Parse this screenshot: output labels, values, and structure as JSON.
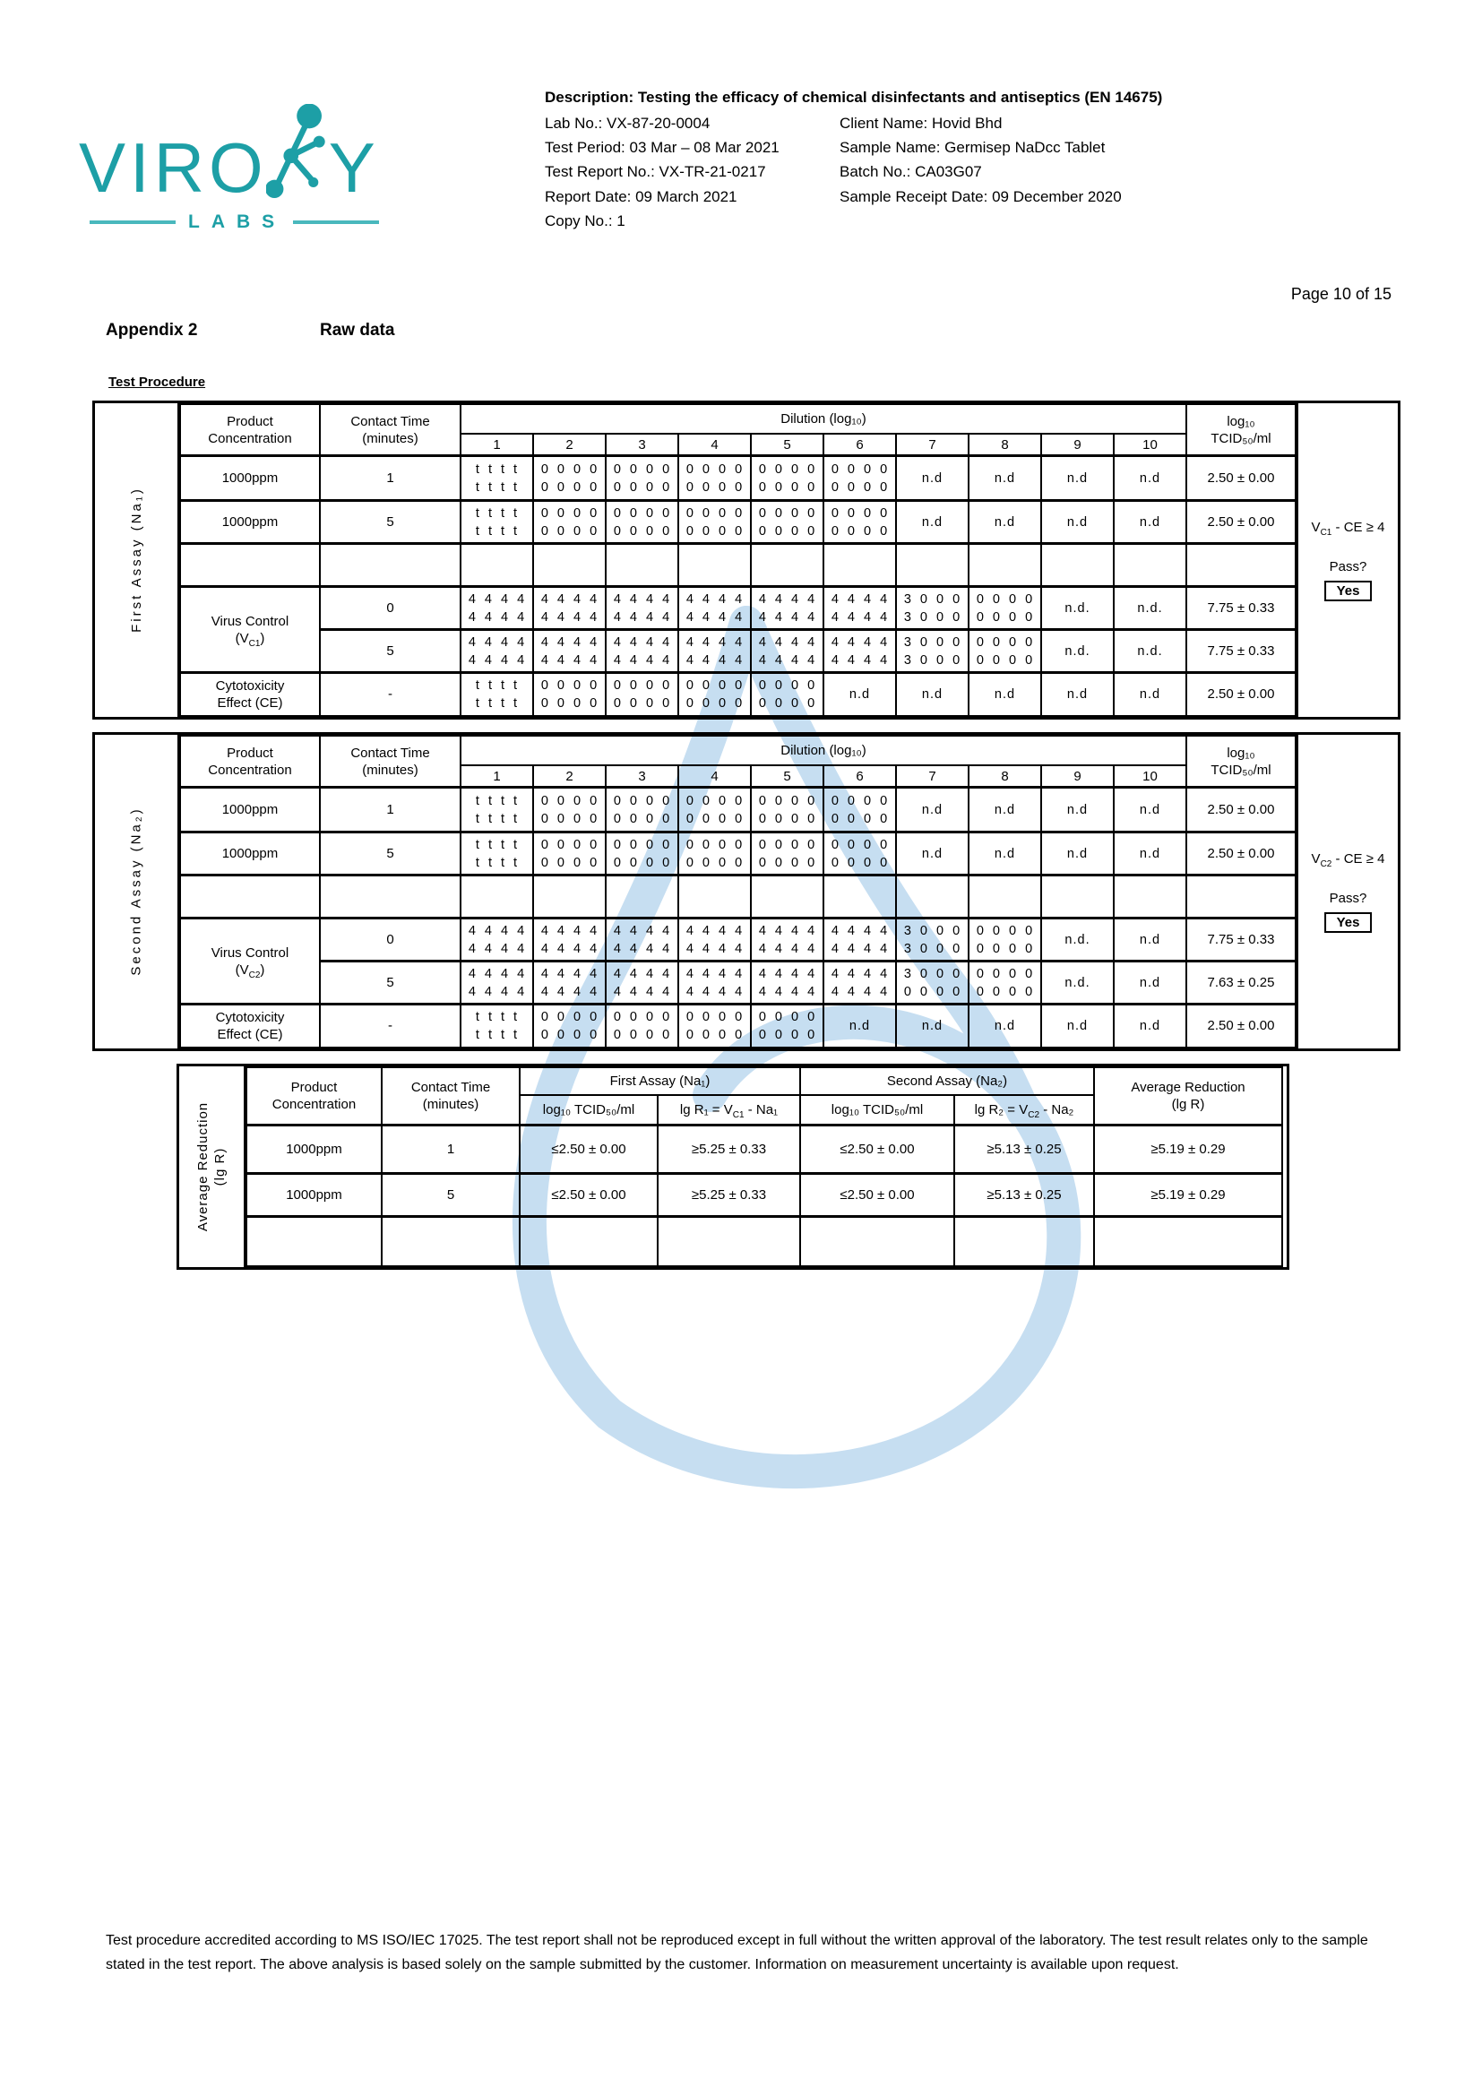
{
  "page": {
    "label": "Page 10 of 15"
  },
  "logo": {
    "word_left": "VIRO",
    "word_right": "Y",
    "sub": "LABS"
  },
  "header": {
    "description": "Description: Testing the efficacy of chemical disinfectants and antiseptics (EN 14675)",
    "left": [
      "Lab No.: VX-87-20-0004",
      "Test Period: 03 Mar – 08 Mar 2021",
      "Test Report No.: VX-TR-21-0217",
      "Report Date: 09 March 2021",
      "Copy No.: 1"
    ],
    "right": [
      "Client Name: Hovid Bhd",
      "Sample Name: Germisep NaDcc Tablet",
      "Batch No.: CA03G07",
      "Sample Receipt Date: 09 December 2020"
    ]
  },
  "appendix": {
    "number": "Appendix 2",
    "title": "Raw data"
  },
  "section_label": "Test Procedure",
  "common": {
    "product_l1": "Product",
    "product_l2": "Concentration",
    "contact_l1": "Contact Time",
    "contact_l2": "(minutes)",
    "dilution_title": "Dilution (log₁₀)",
    "dilution_cols": [
      "1",
      "2",
      "3",
      "4",
      "5",
      "6",
      "7",
      "8",
      "9",
      "10"
    ],
    "tcid_l1": "log₁₀",
    "tcid_l2": "TCID₅₀/ml",
    "pass_label": "Pass?",
    "pass_value": "Yes"
  },
  "assay_tables": [
    {
      "side_label": "First Assay (Na₁)",
      "criterion": {
        "pre": "V",
        "sub": "C1",
        "post": " - CE ≥ 4"
      },
      "rows": [
        {
          "label": [
            "1000ppm"
          ],
          "time": "1",
          "cells": [
            [
              "t t t t",
              "t t t t"
            ],
            [
              "0 0 0 0",
              "0 0 0 0"
            ],
            [
              "0 0 0 0",
              "0 0 0 0"
            ],
            [
              "0 0 0 0",
              "0 0 0 0"
            ],
            [
              "0 0 0 0",
              "0 0 0 0"
            ],
            [
              "0 0 0 0",
              "0 0 0 0"
            ],
            "n.d",
            "n.d",
            "n.d",
            "n.d"
          ],
          "tcid": "2.50 ± 0.00"
        },
        {
          "label": [
            "1000ppm"
          ],
          "time": "5",
          "cells": [
            [
              "t t t t",
              "t t t t"
            ],
            [
              "0 0 0 0",
              "0 0 0 0"
            ],
            [
              "0 0 0 0",
              "0 0 0 0"
            ],
            [
              "0 0 0 0",
              "0 0 0 0"
            ],
            [
              "0 0 0 0",
              "0 0 0 0"
            ],
            [
              "0 0 0 0",
              "0 0 0 0"
            ],
            "n.d",
            "n.d",
            "n.d",
            "n.d"
          ],
          "tcid": "2.50 ± 0.00"
        },
        {
          "label": [
            ""
          ],
          "time": "",
          "cells": [
            "",
            "",
            "",
            "",
            "",
            "",
            "",
            "",
            "",
            ""
          ],
          "tcid": ""
        },
        {
          "label": [
            "Virus Control",
            {
              "pre": "(V",
              "sub": "C1",
              "post": ")"
            }
          ],
          "label_rowspan": 2,
          "time": "0",
          "cells": [
            [
              "4 4 4 4",
              "4 4 4 4"
            ],
            [
              "4 4 4 4",
              "4 4 4 4"
            ],
            [
              "4 4 4 4",
              "4 4 4 4"
            ],
            [
              "4 4 4 4",
              "4 4 4 4"
            ],
            [
              "4 4 4 4",
              "4 4 4 4"
            ],
            [
              "4 4 4 4",
              "4 4 4 4"
            ],
            [
              "3 0 0 0",
              "3 0 0 0"
            ],
            [
              "0 0 0 0",
              "0 0 0 0"
            ],
            "n.d.",
            "n.d."
          ],
          "tcid": "7.75 ± 0.33"
        },
        {
          "no_label": true,
          "time": "5",
          "cells": [
            [
              "4 4 4 4",
              "4 4 4 4"
            ],
            [
              "4 4 4 4",
              "4 4 4 4"
            ],
            [
              "4 4 4 4",
              "4 4 4 4"
            ],
            [
              "4 4 4 4",
              "4 4 4 4"
            ],
            [
              "4 4 4 4",
              "4 4 4 4"
            ],
            [
              "4 4 4 4",
              "4 4 4 4"
            ],
            [
              "3 0 0 0",
              "3 0 0 0"
            ],
            [
              "0 0 0 0",
              "0 0 0 0"
            ],
            "n.d.",
            "n.d."
          ],
          "tcid": "7.75 ± 0.33"
        },
        {
          "label": [
            "Cytotoxicity",
            "Effect (CE)"
          ],
          "time": "-",
          "cells": [
            [
              "t t t t",
              "t t t t"
            ],
            [
              "0 0 0 0",
              "0 0 0 0"
            ],
            [
              "0 0 0 0",
              "0 0 0 0"
            ],
            [
              "0 0 0 0",
              "0 0 0 0"
            ],
            [
              "0 0 0 0",
              "0 0 0 0"
            ],
            "n.d",
            "n.d",
            "n.d",
            "n.d",
            "n.d"
          ],
          "tcid": "2.50 ± 0.00"
        }
      ]
    },
    {
      "side_label": "Second Assay (Na₂)",
      "criterion": {
        "pre": "V",
        "sub": "C2",
        "post": " - CE ≥ 4"
      },
      "rows": [
        {
          "label": [
            "1000ppm"
          ],
          "time": "1",
          "cells": [
            [
              "t t t t",
              "t t t t"
            ],
            [
              "0 0 0 0",
              "0 0 0 0"
            ],
            [
              "0 0 0 0",
              "0 0 0 0"
            ],
            [
              "0 0 0 0",
              "0 0 0 0"
            ],
            [
              "0 0 0 0",
              "0 0 0 0"
            ],
            [
              "0 0 0 0",
              "0 0 0 0"
            ],
            "n.d",
            "n.d",
            "n.d",
            "n.d"
          ],
          "tcid": "2.50 ± 0.00"
        },
        {
          "label": [
            "1000ppm"
          ],
          "time": "5",
          "cells": [
            [
              "t t t t",
              "t t t t"
            ],
            [
              "0 0 0 0",
              "0 0 0 0"
            ],
            [
              "0 0 0 0",
              "0 0 0 0"
            ],
            [
              "0 0 0 0",
              "0 0 0 0"
            ],
            [
              "0 0 0 0",
              "0 0 0 0"
            ],
            [
              "0 0 0 0",
              "0 0 0 0"
            ],
            "n.d",
            "n.d",
            "n.d",
            "n.d"
          ],
          "tcid": "2.50 ± 0.00"
        },
        {
          "label": [
            ""
          ],
          "time": "",
          "cells": [
            "",
            "",
            "",
            "",
            "",
            "",
            "",
            "",
            "",
            ""
          ],
          "tcid": ""
        },
        {
          "label": [
            "Virus Control",
            {
              "pre": "(V",
              "sub": "C2",
              "post": ")"
            }
          ],
          "label_rowspan": 2,
          "time": "0",
          "cells": [
            [
              "4 4 4 4",
              "4 4 4 4"
            ],
            [
              "4 4 4 4",
              "4 4 4 4"
            ],
            [
              "4 4 4 4",
              "4 4 4 4"
            ],
            [
              "4 4 4 4",
              "4 4 4 4"
            ],
            [
              "4 4 4 4",
              "4 4 4 4"
            ],
            [
              "4 4 4 4",
              "4 4 4 4"
            ],
            [
              "3 0 0 0",
              "3 0 0 0"
            ],
            [
              "0 0 0 0",
              "0 0 0 0"
            ],
            "n.d.",
            "n.d"
          ],
          "tcid": "7.75 ± 0.33"
        },
        {
          "no_label": true,
          "time": "5",
          "cells": [
            [
              "4 4 4 4",
              "4 4 4 4"
            ],
            [
              "4 4 4 4",
              "4 4 4 4"
            ],
            [
              "4 4 4 4",
              "4 4 4 4"
            ],
            [
              "4 4 4 4",
              "4 4 4 4"
            ],
            [
              "4 4 4 4",
              "4 4 4 4"
            ],
            [
              "4 4 4 4",
              "4 4 4 4"
            ],
            [
              "3 0 0 0",
              "0 0 0 0"
            ],
            [
              "0 0 0 0",
              "0 0 0 0"
            ],
            "n.d.",
            "n.d"
          ],
          "tcid": "7.63 ± 0.25"
        },
        {
          "label": [
            "Cytotoxicity",
            "Effect (CE)"
          ],
          "time": "-",
          "cells": [
            [
              "t t t t",
              "t t t t"
            ],
            [
              "0 0 0 0",
              "0 0 0 0"
            ],
            [
              "0 0 0 0",
              "0 0 0 0"
            ],
            [
              "0 0 0 0",
              "0 0 0 0"
            ],
            [
              "0 0 0 0",
              "0 0 0 0"
            ],
            "n.d",
            "n.d",
            "n.d",
            "n.d",
            "n.d"
          ],
          "tcid": "2.50 ± 0.00"
        }
      ]
    }
  ],
  "avg_table": {
    "side_l1": "Average Reduction",
    "side_l2": "(lg R)",
    "group1_title": "First Assay (Na₁)",
    "group2_title": "Second Assay (Na₂)",
    "tcid_header": "log₁₀ TCID₅₀/ml",
    "lgr1": {
      "pre": "lg R₁ = V",
      "sub": "C1",
      "post": " - Na₁"
    },
    "lgr2": {
      "pre": "lg R₂ = V",
      "sub": "C2",
      "post": " - Na₂"
    },
    "avg_l1": "Average Reduction",
    "avg_l2": "(lg R)",
    "rows": [
      [
        "1000ppm",
        "1",
        "≤2.50 ± 0.00",
        "≥5.25 ± 0.33",
        "≤2.50 ± 0.00",
        "≥5.13 ± 0.25",
        "≥5.19 ± 0.29"
      ],
      [
        "1000ppm",
        "5",
        "≤2.50 ± 0.00",
        "≥5.25 ± 0.33",
        "≤2.50 ± 0.00",
        "≥5.13 ± 0.25",
        "≥5.19 ± 0.29"
      ],
      [
        "",
        "",
        "",
        "",
        "",
        "",
        ""
      ]
    ]
  },
  "footer": "Test procedure accredited according to MS ISO/IEC 17025. The test report shall not be reproduced except in full without the written approval of the laboratory. The test result relates only to the sample stated in the test report. The above analysis is based solely on the sample submitted by the customer. Information on measurement uncertainty is available upon request.",
  "colors": {
    "teal": "#1d9fa6",
    "teal_light": "#49b8bd",
    "watermark": "#c6def1"
  }
}
